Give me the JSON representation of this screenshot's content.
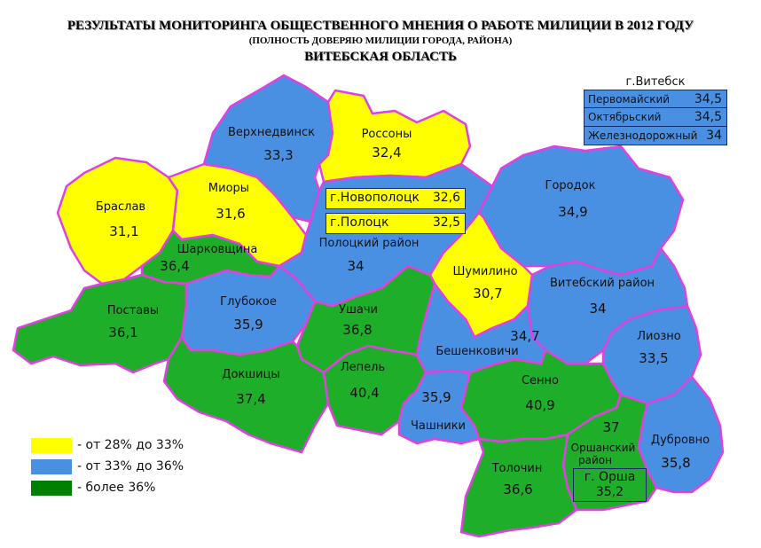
{
  "title": {
    "line1": "РЕЗУЛЬТАТЫ МОНИТОРИНГА ОБЩЕСТВЕННОГО МНЕНИЯ О РАБОТЕ МИЛИЦИИ В 2012 ГОДУ",
    "line2": "(ПОЛНОСТЬ ДОВЕРЯЮ МИЛИЦИИ ГОРОДА, РАЙОНА)",
    "line3": "ВИТЕБСКАЯ ОБЛАСТЬ"
  },
  "colors": {
    "yellow": "#ffff00",
    "blue": "#4a90e2",
    "green": "#1fae2a",
    "border": "#e040e0"
  },
  "legend": [
    {
      "label": "- от 28% до 33%",
      "color": "#ffff00"
    },
    {
      "label": "- от 33% до 36%",
      "color": "#4a90e2"
    },
    {
      "label": "- более 36%",
      "color": "#008000"
    }
  ],
  "regions": {
    "verkhnedvinsk": {
      "name": "Верхнедвинск",
      "value": "33,3"
    },
    "rossony": {
      "name": "Россоны",
      "value": "32,4"
    },
    "braslav": {
      "name": "Браслав",
      "value": "31,1"
    },
    "miory": {
      "name": "Миоры",
      "value": "31,6"
    },
    "sharkovshchina": {
      "name": "Шарковщина",
      "value": "36,4"
    },
    "polotsk_rayon": {
      "name": "Полоцкий район",
      "value": "34"
    },
    "gorodok": {
      "name": "Городок",
      "value": "34,9"
    },
    "shumilino": {
      "name": "Шумилино",
      "value": "30,7"
    },
    "vitebsk_rayon": {
      "name": "Витебский район",
      "value": "34"
    },
    "postavy": {
      "name": "Поставы",
      "value": "36,1"
    },
    "glubokoe": {
      "name": "Глубокое",
      "value": "35,9"
    },
    "ushachi": {
      "name": "Ушачи",
      "value": "36,8"
    },
    "beshenkovichi": {
      "name": "Бешенковичи",
      "value": "34,7"
    },
    "liozno": {
      "name": "Лиозно",
      "value": "33,5"
    },
    "dokshitsy": {
      "name": "Докшицы",
      "value": "37,4"
    },
    "lepel": {
      "name": "Лепель",
      "value": "40,4"
    },
    "chashniki": {
      "name": "Чашники",
      "value": "35,9"
    },
    "senno": {
      "name": "Сенно",
      "value": "40,9"
    },
    "orsha_rayon": {
      "name1": "Оршанский",
      "name2": "район",
      "value": "37"
    },
    "dubrovno": {
      "name": "Дубровно",
      "value": "35,8"
    },
    "tolochin": {
      "name": "Толочин",
      "value": "36,6"
    }
  },
  "cities": {
    "novopolotsk": {
      "name": "г.Новополоцк",
      "value": "32,6"
    },
    "polotsk": {
      "name": "г.Полоцк",
      "value": "32,5"
    },
    "orsha": {
      "name": "г. Орша",
      "value": "35,2"
    }
  },
  "vitebsk_city": {
    "title": "г.Витебск",
    "rows": [
      {
        "name": "Первомайский",
        "value": "34,5"
      },
      {
        "name": "Октябрьский",
        "value": "34,5"
      },
      {
        "name": "Железнодорожный",
        "value": "34"
      }
    ]
  }
}
